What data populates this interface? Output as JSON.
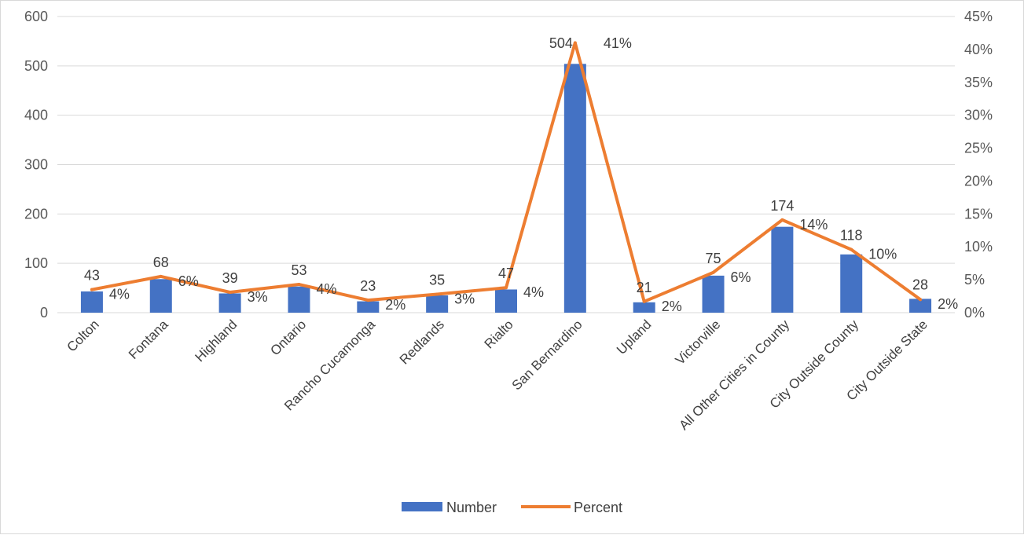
{
  "chart_data": {
    "type": "bar",
    "categories": [
      "Colton",
      "Fontana",
      "Highland",
      "Ontario",
      "Rancho Cucamonga",
      "Redlands",
      "Rialto",
      "San Bernardino",
      "Upland",
      "Victorville",
      "All Other Cities in County",
      "City Outside County",
      "City Outside State"
    ],
    "series": [
      {
        "name": "Number",
        "type": "bar",
        "axis": "left",
        "color": "#4472C4",
        "values": [
          43,
          68,
          39,
          53,
          23,
          35,
          47,
          504,
          21,
          75,
          174,
          118,
          28
        ],
        "labels": [
          "43",
          "68",
          "39",
          "53",
          "23",
          "35",
          "47",
          "504",
          "21",
          "75",
          "174",
          "118",
          "28"
        ]
      },
      {
        "name": "Percent",
        "type": "line",
        "axis": "right",
        "color": "#ED7D31",
        "values": [
          3.5,
          5.5,
          3.1,
          4.3,
          1.9,
          2.8,
          3.8,
          41,
          1.7,
          6.1,
          14.1,
          9.6,
          2.0
        ],
        "labels": [
          "4%",
          "6%",
          "3%",
          "4%",
          "2%",
          "3%",
          "4%",
          "41%",
          "2%",
          "6%",
          "14%",
          "10%",
          "2%"
        ]
      }
    ],
    "y_left": {
      "min": 0,
      "max": 600,
      "ticks": [
        0,
        100,
        200,
        300,
        400,
        500,
        600
      ]
    },
    "y_right": {
      "min": 0,
      "max": 45,
      "ticks": [
        "0%",
        "5%",
        "10%",
        "15%",
        "20%",
        "25%",
        "30%",
        "35%",
        "40%",
        "45%"
      ]
    },
    "grid": true,
    "legend_position": "bottom"
  }
}
